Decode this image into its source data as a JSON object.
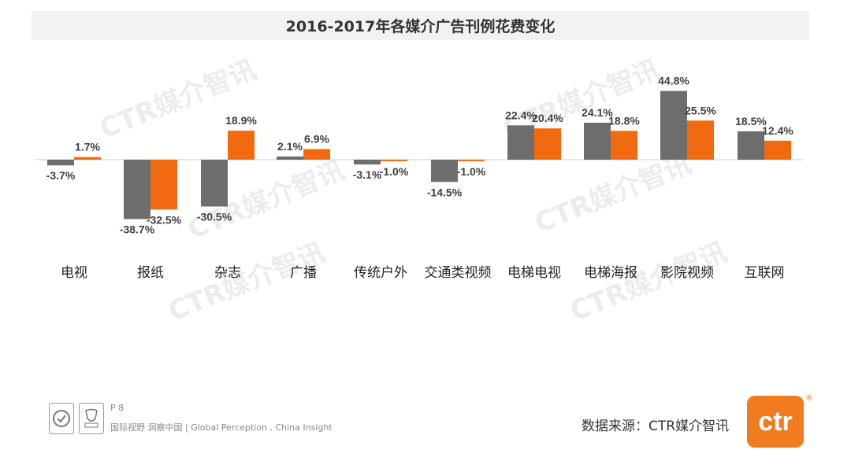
{
  "header": {
    "title": "2016-2017年各媒介广告刊例花费变化"
  },
  "chart_data": {
    "type": "bar",
    "title": "2016-2017年各媒介广告刊例花费变化",
    "categories": [
      "电视",
      "报纸",
      "杂志",
      "广播",
      "传统户外",
      "交通类视频",
      "电梯电视",
      "电梯海报",
      "影院视频",
      "互联网"
    ],
    "series": [
      {
        "color": "#6d6d6d",
        "values": [
          -3.7,
          -38.7,
          -30.5,
          2.1,
          -3.1,
          -14.5,
          22.4,
          24.1,
          44.8,
          18.5
        ]
      },
      {
        "color": "#f26a10",
        "values": [
          1.7,
          -32.5,
          18.9,
          6.9,
          -1.0,
          -1.0,
          20.4,
          18.8,
          25.5,
          12.4
        ]
      }
    ],
    "labels": [
      [
        "-3.7%",
        "-38.7%",
        "-30.5%",
        "2.1%",
        "-3.1%",
        "-14.5%",
        "22.4%",
        "24.1%",
        "44.8%",
        "18.5%"
      ],
      [
        "1.7%",
        "-32.5%",
        "18.9%",
        "6.9%",
        "-1.0%",
        "-1.0%",
        "20.4%",
        "18.8%",
        "25.5%",
        "12.4%"
      ]
    ],
    "axis": {
      "baseline": 0,
      "grid": false,
      "legend": "none"
    }
  },
  "watermark": {
    "text": "CTR媒介智讯"
  },
  "footer": {
    "page": "P 8",
    "slogan": "国际视野  洞察中国 |  Global Perception , China Insight",
    "source": "数据来源：CTR媒介智讯",
    "logo_text": "ctr",
    "reg_mark": "®",
    "badge_icons": [
      "certification-seal-icon",
      "ukas-mark-icon"
    ]
  },
  "colors": {
    "accent": "#f07c1f",
    "title_bar": "#f2f2f2"
  }
}
